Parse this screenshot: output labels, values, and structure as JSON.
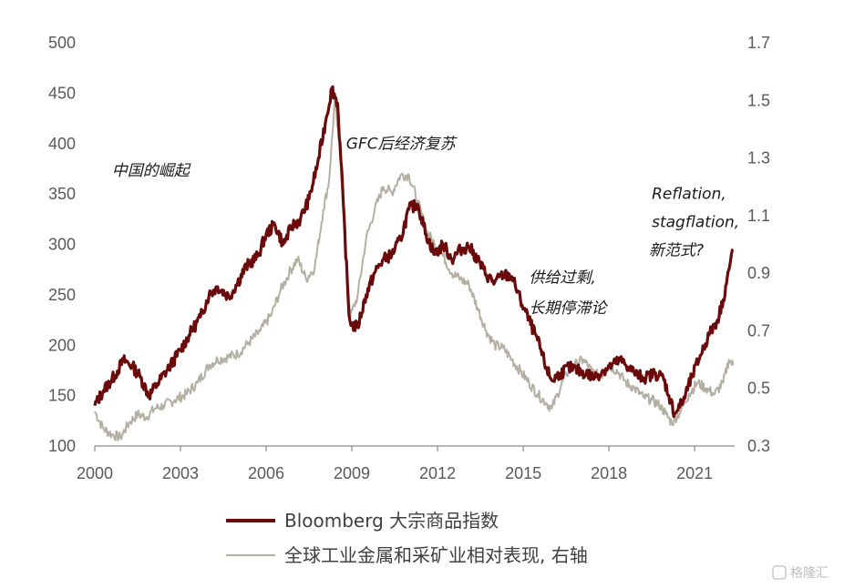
{
  "chart_data": {
    "type": "line",
    "x_range": [
      2000,
      2022.4
    ],
    "x_ticks": [
      "2000",
      "2003",
      "2006",
      "2009",
      "2012",
      "2015",
      "2018",
      "2021"
    ],
    "y_left": {
      "range": [
        100,
        500
      ],
      "ticks": [
        "100",
        "150",
        "200",
        "250",
        "300",
        "350",
        "400",
        "450",
        "500"
      ]
    },
    "y_right": {
      "range": [
        0.3,
        1.7
      ],
      "ticks": [
        "0.3",
        "0.5",
        "0.7",
        "0.9",
        "1.1",
        "1.3",
        "1.5",
        "1.7"
      ]
    },
    "grid": false,
    "legend_position": "bottom",
    "series": [
      {
        "name": "Bloomberg 大宗商品指数",
        "axis": "left",
        "color": "#6b0a0a",
        "x": [
          2000.0,
          2000.3,
          2000.7,
          2001.0,
          2001.3,
          2001.6,
          2001.9,
          2002.2,
          2002.6,
          2003.0,
          2003.3,
          2003.7,
          2004.0,
          2004.3,
          2004.7,
          2005.0,
          2005.3,
          2005.7,
          2006.0,
          2006.3,
          2006.6,
          2006.9,
          2007.2,
          2007.5,
          2007.8,
          2008.1,
          2008.3,
          2008.5,
          2008.7,
          2008.9,
          2009.0,
          2009.2,
          2009.5,
          2009.8,
          2010.1,
          2010.4,
          2010.7,
          2011.0,
          2011.3,
          2011.6,
          2011.9,
          2012.2,
          2012.5,
          2012.8,
          2013.1,
          2013.4,
          2013.7,
          2014.0,
          2014.3,
          2014.6,
          2014.9,
          2015.2,
          2015.5,
          2015.8,
          2016.0,
          2016.3,
          2016.6,
          2016.9,
          2017.2,
          2017.5,
          2017.8,
          2018.1,
          2018.4,
          2018.7,
          2019.0,
          2019.3,
          2019.6,
          2019.9,
          2020.1,
          2020.3,
          2020.6,
          2020.9,
          2021.2,
          2021.5,
          2021.8,
          2022.0,
          2022.2,
          2022.35
        ],
        "y": [
          140,
          155,
          170,
          185,
          180,
          168,
          150,
          162,
          178,
          195,
          210,
          228,
          250,
          258,
          248,
          262,
          278,
          288,
          310,
          320,
          300,
          318,
          325,
          345,
          380,
          425,
          455,
          440,
          340,
          230,
          220,
          218,
          250,
          272,
          285,
          290,
          305,
          335,
          340,
          310,
          290,
          300,
          285,
          295,
          298,
          285,
          270,
          262,
          270,
          268,
          245,
          225,
          205,
          178,
          165,
          172,
          178,
          175,
          172,
          168,
          175,
          180,
          185,
          178,
          170,
          168,
          172,
          168,
          150,
          132,
          145,
          168,
          190,
          210,
          225,
          245,
          275,
          295
        ]
      },
      {
        "name": "全球工业金属和采矿业相对表现, 右轴",
        "axis": "right",
        "color": "#b3b0a3",
        "x": [
          2000.0,
          2000.3,
          2000.6,
          2000.9,
          2001.2,
          2001.5,
          2001.8,
          2002.1,
          2002.4,
          2002.8,
          2003.2,
          2003.6,
          2004.0,
          2004.3,
          2004.7,
          2005.0,
          2005.4,
          2005.8,
          2006.2,
          2006.5,
          2006.8,
          2007.1,
          2007.4,
          2007.7,
          2008.0,
          2008.2,
          2008.4,
          2008.6,
          2008.8,
          2008.95,
          2009.2,
          2009.5,
          2009.8,
          2010.1,
          2010.4,
          2010.7,
          2011.0,
          2011.3,
          2011.6,
          2011.9,
          2012.2,
          2012.5,
          2012.8,
          2013.1,
          2013.4,
          2013.7,
          2014.0,
          2014.3,
          2014.6,
          2014.9,
          2015.2,
          2015.5,
          2015.8,
          2016.0,
          2016.2,
          2016.5,
          2016.8,
          2017.1,
          2017.4,
          2017.7,
          2018.0,
          2018.3,
          2018.6,
          2018.9,
          2019.2,
          2019.5,
          2019.8,
          2020.0,
          2020.2,
          2020.5,
          2020.8,
          2021.1,
          2021.4,
          2021.7,
          2022.0,
          2022.2,
          2022.35
        ],
        "y": [
          0.42,
          0.36,
          0.34,
          0.33,
          0.38,
          0.41,
          0.4,
          0.43,
          0.44,
          0.46,
          0.48,
          0.52,
          0.58,
          0.6,
          0.61,
          0.62,
          0.66,
          0.7,
          0.76,
          0.84,
          0.9,
          0.95,
          0.88,
          0.92,
          1.12,
          1.22,
          1.5,
          1.3,
          0.95,
          0.75,
          0.82,
          1.02,
          1.12,
          1.2,
          1.18,
          1.24,
          1.24,
          1.15,
          1.05,
          1.0,
          0.96,
          0.9,
          0.88,
          0.86,
          0.78,
          0.7,
          0.65,
          0.64,
          0.6,
          0.56,
          0.52,
          0.48,
          0.45,
          0.43,
          0.48,
          0.55,
          0.58,
          0.6,
          0.56,
          0.54,
          0.58,
          0.56,
          0.52,
          0.5,
          0.47,
          0.46,
          0.44,
          0.41,
          0.38,
          0.42,
          0.48,
          0.52,
          0.5,
          0.48,
          0.52,
          0.6,
          0.58
        ]
      }
    ],
    "annotations": [
      {
        "text": "中国的崛起",
        "x": 2000.6,
        "y": 368
      },
      {
        "text": "GFC后经济复苏",
        "x": 2008.8,
        "y": 395
      },
      {
        "text": "供给过剩,",
        "x": 2015.2,
        "y": 262
      },
      {
        "text": "长期停滞论",
        "x": 2015.2,
        "y": 232
      },
      {
        "text": "Reflation,",
        "x": 2019.5,
        "y": 345
      },
      {
        "text": "stagflation,",
        "x": 2019.5,
        "y": 317
      },
      {
        "text": "新范式?",
        "x": 2019.4,
        "y": 289
      }
    ]
  },
  "watermark": "格隆汇"
}
